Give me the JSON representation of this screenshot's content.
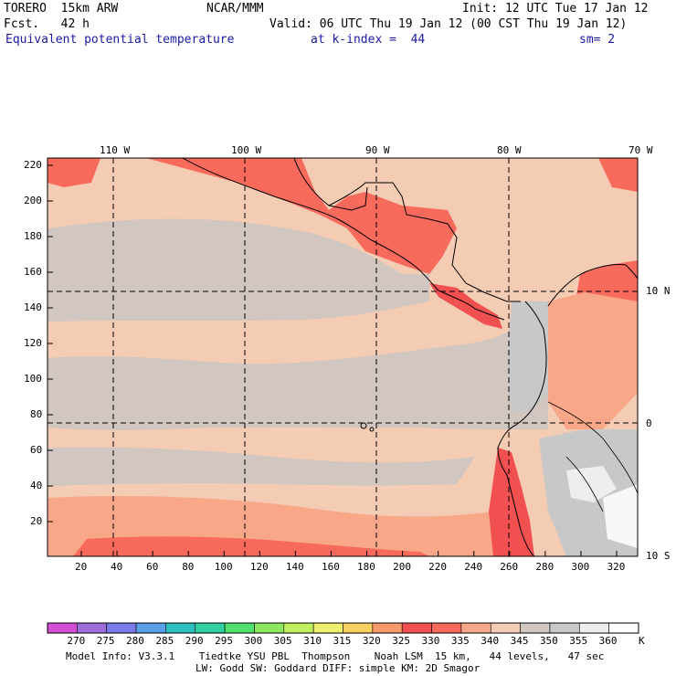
{
  "header": {
    "model": "TORERO  15km ARW",
    "center": "NCAR/MMM",
    "init": "Init: 12 UTC Tue 17 Jan 12",
    "fcst": "Fcst.   42 h",
    "valid": "Valid: 06 UTC Thu 19 Jan 12 (00 CST Thu 19 Jan 12)",
    "field": "Equivalent potential temperature",
    "level": "at k-index =  44",
    "smooth": "sm= 2"
  },
  "lon_labels": [
    "110 W",
    "100 W",
    "90 W",
    "80 W",
    "70 W"
  ],
  "lat_labels": [
    "10 N",
    "0",
    "10 S"
  ],
  "y_ticks": [
    "20",
    "40",
    "60",
    "80",
    "100",
    "120",
    "140",
    "160",
    "180",
    "200",
    "220"
  ],
  "x_ticks": [
    "20",
    "40",
    "60",
    "80",
    "100",
    "120",
    "140",
    "160",
    "180",
    "200",
    "220",
    "240",
    "260",
    "280",
    "300",
    "320"
  ],
  "colorbar": {
    "labels": [
      "270",
      "275",
      "280",
      "285",
      "290",
      "295",
      "300",
      "305",
      "310",
      "315",
      "320",
      "325",
      "330",
      "335",
      "340",
      "345",
      "350",
      "355",
      "360"
    ],
    "unit": "K",
    "colors": [
      "#d34fd3",
      "#9e6fd8",
      "#7a7ae8",
      "#5aa0e8",
      "#2ec0c0",
      "#30d0a0",
      "#50e070",
      "#90e860",
      "#c0f060",
      "#f0f070",
      "#f8d060",
      "#f89a6a",
      "#f05050",
      "#f76a5c",
      "#f8a888",
      "#f4ccb4",
      "#d2c6c0",
      "#c8c8c8",
      "#eeeeee",
      "#ffffff"
    ]
  },
  "footer": {
    "line1": "Model Info: V3.3.1    Tiedtke YSU PBL  Thompson    Noah LSM  15 km,   44 levels,   47 sec",
    "line2": "LW: Godd SW: Goddard DIFF: simple KM: 2D Smagor"
  }
}
